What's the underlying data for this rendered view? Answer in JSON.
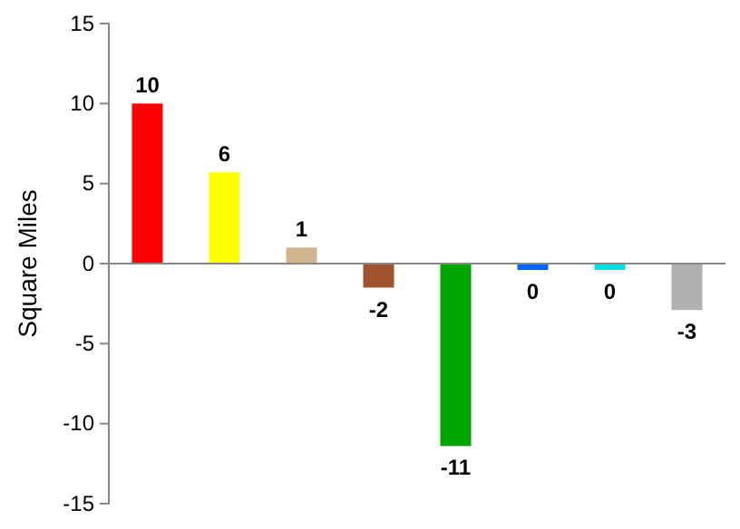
{
  "chart_data": {
    "type": "bar",
    "ylabel": "Square Miles",
    "categories": [
      null,
      null,
      null,
      null,
      null,
      null,
      null,
      null
    ],
    "values": [
      10.0,
      5.7,
      1.0,
      -1.5,
      -11.4,
      -0.4,
      -0.4,
      -2.9
    ],
    "colors": [
      "#ff0000",
      "#ffff00",
      "#d2b48c",
      "#a0522d",
      "#00a600",
      "#0066ff",
      "#00e0e0",
      "#b0b0b0"
    ],
    "value_labels": [
      "10",
      "6",
      "1",
      "-2",
      "-11",
      "0",
      "0",
      "-3"
    ],
    "ylim": [
      -15,
      15
    ],
    "yticks": [
      -15,
      -10,
      -5,
      0,
      5,
      10,
      15
    ]
  }
}
